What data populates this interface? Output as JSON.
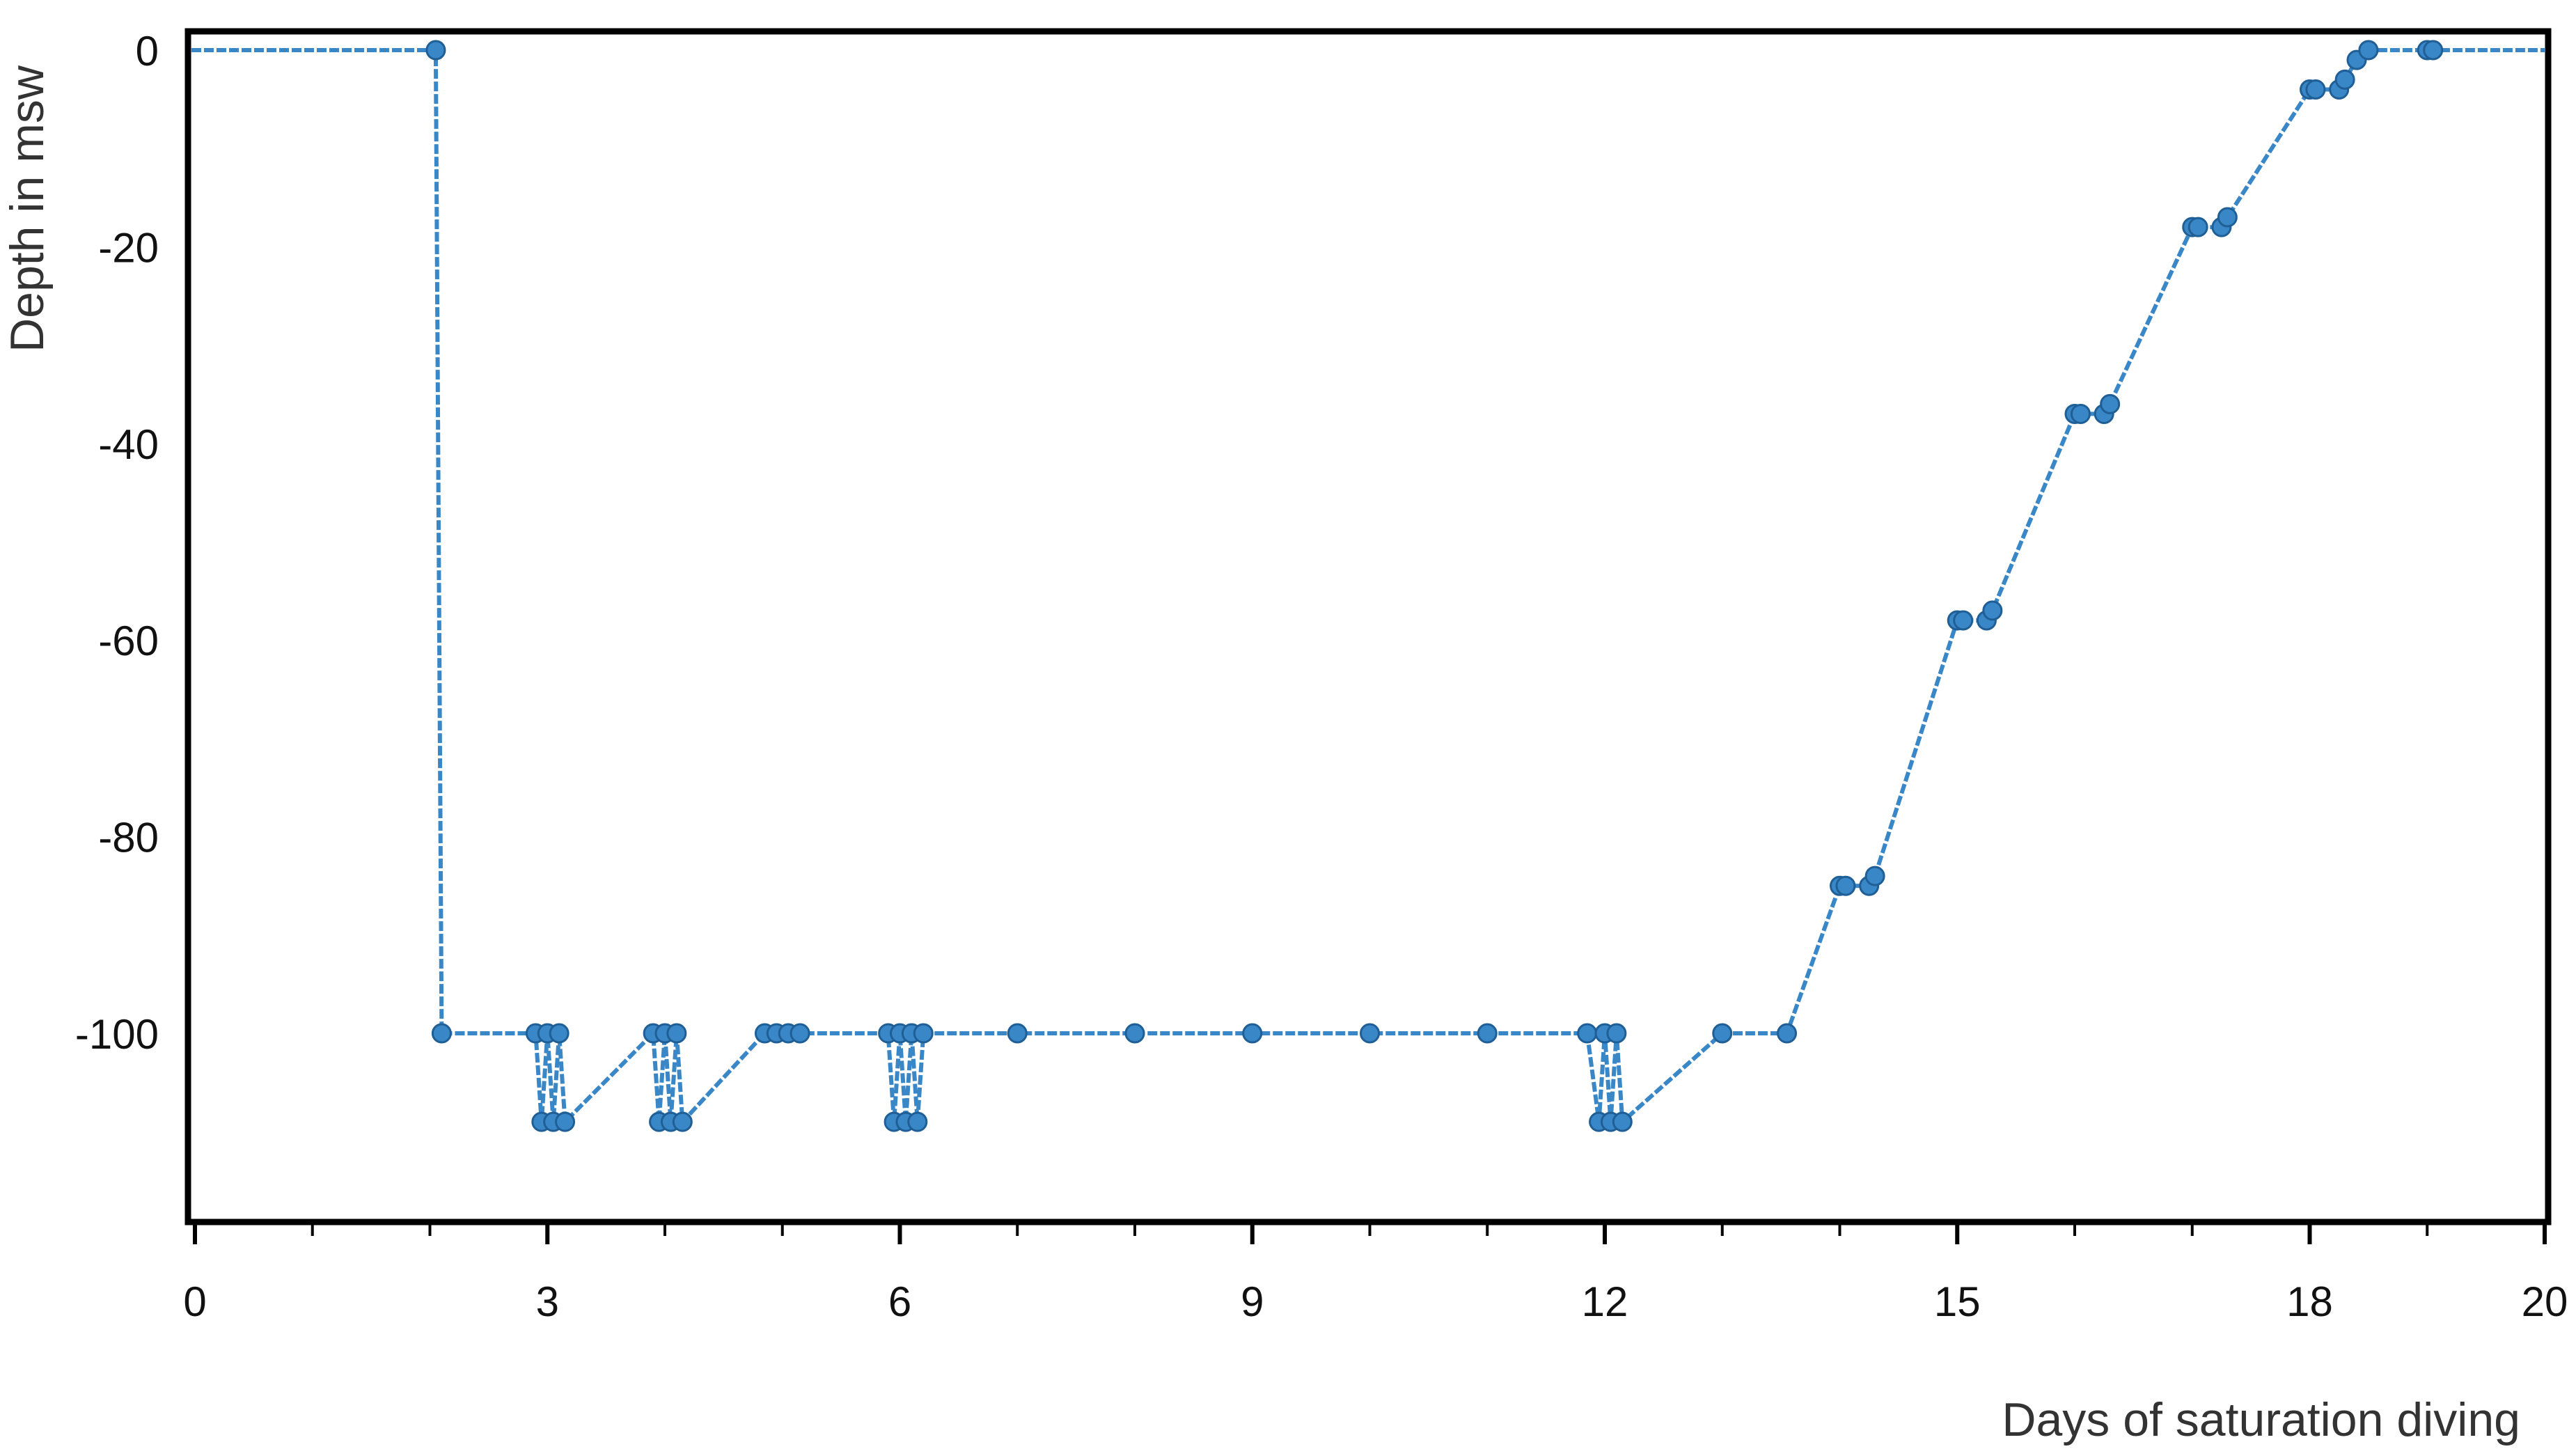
{
  "chart_data": {
    "type": "line",
    "title": "",
    "xlabel": "Days of saturation diving",
    "ylabel": "Depth in msw",
    "xlim": [
      0,
      20
    ],
    "ylim": [
      -115,
      2
    ],
    "xticks": [
      0,
      3,
      6,
      9,
      12,
      15,
      18,
      20
    ],
    "yticks": [
      0,
      -20,
      -40,
      -60,
      -80,
      -100
    ],
    "grid": false,
    "legend": "none",
    "colors": {
      "line": "#3a87c8",
      "marker": "#3a87c8",
      "frame": "#000000"
    },
    "series": [
      {
        "x": [
          2.05,
          2.1,
          2.9,
          2.95,
          3.0,
          3.05,
          3.1,
          3.15,
          3.9,
          3.95,
          4.0,
          4.05,
          4.1,
          4.15,
          4.85,
          4.95,
          5.05,
          5.15,
          5.9,
          5.95,
          6.0,
          6.05,
          6.1,
          6.15,
          6.2,
          7.0,
          8.0,
          9.0,
          10.0,
          11.0,
          11.85,
          11.95,
          12.0,
          12.05,
          12.1,
          12.15,
          13.0,
          13.55,
          14.0,
          14.05,
          14.25,
          14.3,
          15.0,
          15.05,
          15.25,
          15.3,
          16.0,
          16.05,
          16.25,
          16.3,
          17.0,
          17.05,
          17.25,
          17.3,
          18.0,
          18.05,
          18.25,
          18.3,
          18.4,
          18.5,
          19.0,
          19.05
        ],
        "y": [
          0,
          -100,
          -100,
          -109,
          -100,
          -109,
          -100,
          -109,
          -100,
          -109,
          -100,
          -109,
          -100,
          -109,
          -100,
          -100,
          -100,
          -100,
          -100,
          -109,
          -100,
          -109,
          -100,
          -109,
          -100,
          -100,
          -100,
          -100,
          -100,
          -100,
          -100,
          -109,
          -100,
          -109,
          -100,
          -109,
          -100,
          -100,
          -85,
          -85,
          -85,
          -84,
          -58,
          -58,
          -58,
          -57,
          -37,
          -37,
          -37,
          -36,
          -18,
          -18,
          -18,
          -17,
          -4,
          -4,
          -4,
          -3,
          -1,
          0,
          0,
          0
        ]
      }
    ]
  }
}
